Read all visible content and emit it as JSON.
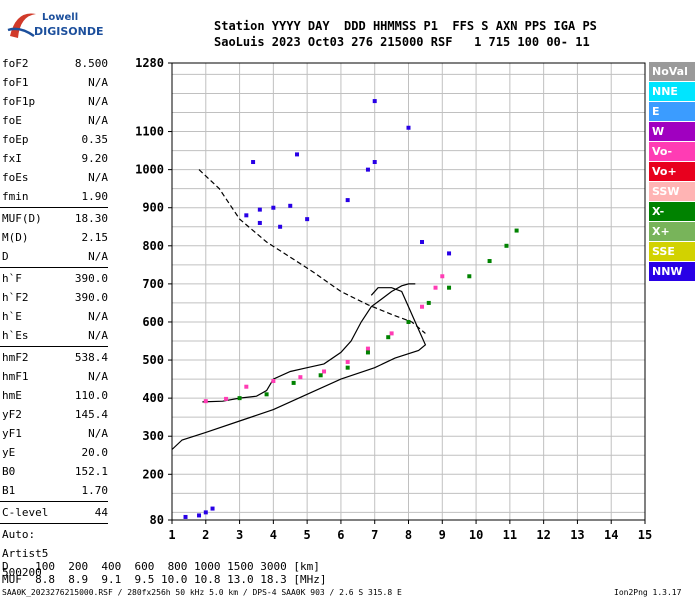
{
  "logo": {
    "line1": "Lowell",
    "line2": "DIGISONDE"
  },
  "header": {
    "labels": "Station YYYY DAY  DDD HHMMSS P1  FFS S AXN PPS IGA PS",
    "values": "SaoLuis 2023 Oct03 276 215000 RSF   1 715 100 00- 11"
  },
  "params": [
    {
      "k": "foF2",
      "v": "8.500"
    },
    {
      "k": "foF1",
      "v": "N/A"
    },
    {
      "k": "foF1p",
      "v": "N/A"
    },
    {
      "k": "foE",
      "v": "N/A"
    },
    {
      "k": "foEp",
      "v": "0.35"
    },
    {
      "k": "fxI",
      "v": "9.20"
    },
    {
      "k": "foEs",
      "v": "N/A"
    },
    {
      "k": "fmin",
      "v": "1.90"
    },
    {
      "k": "MUF(D)",
      "v": "18.30"
    },
    {
      "k": "M(D)",
      "v": "2.15"
    },
    {
      "k": "D",
      "v": "N/A"
    },
    {
      "k": "h`F",
      "v": "390.0"
    },
    {
      "k": "h`F2",
      "v": "390.0"
    },
    {
      "k": "h`E",
      "v": "N/A"
    },
    {
      "k": "h`Es",
      "v": "N/A"
    },
    {
      "k": "hmF2",
      "v": "538.4"
    },
    {
      "k": "hmF1",
      "v": "N/A"
    },
    {
      "k": "hmE",
      "v": "110.0"
    },
    {
      "k": "yF2",
      "v": "145.4"
    },
    {
      "k": "yF1",
      "v": "N/A"
    },
    {
      "k": "yE",
      "v": "20.0"
    },
    {
      "k": "B0",
      "v": "152.1"
    },
    {
      "k": "B1",
      "v": "1.70"
    },
    {
      "k": "C-level",
      "v": "44"
    }
  ],
  "auto": {
    "l1": "Auto:",
    "l2": "Artist5",
    "l3": "500200"
  },
  "legend": [
    {
      "name": "NoVal",
      "color": "#9a9a9a"
    },
    {
      "name": "NNE",
      "color": "#00e5ff"
    },
    {
      "name": "E",
      "color": "#3b9cff"
    },
    {
      "name": "W",
      "color": "#a000c0"
    },
    {
      "name": "Vo-",
      "color": "#ff3cb4"
    },
    {
      "name": "Vo+",
      "color": "#e8001e"
    },
    {
      "name": "SSW",
      "color": "#ffb4b4"
    },
    {
      "name": "X-",
      "color": "#008200"
    },
    {
      "name": "X+",
      "color": "#78b45a"
    },
    {
      "name": "SSE",
      "color": "#d2d200"
    },
    {
      "name": "NNW",
      "color": "#2800e6"
    }
  ],
  "footer": {
    "dist": "D    100  200  400  600  800 1000 1500 3000 [km]",
    "muf": "MUF  8.8  8.9  9.1  9.5 10.0 10.8 13.0 18.3 [MHz]",
    "file": "SAA0K_2023276215000.RSF / 280fx256h 50 kHz 5.0 km / DPS-4 SAA0K 903 / 2.6 S 315.8 E",
    "version": "Ion2Png 1.3.17"
  },
  "chart_data": {
    "type": "scatter",
    "title": "",
    "xlabel": "",
    "ylabel": "",
    "xlim": [
      1,
      15
    ],
    "ylim": [
      80,
      1280
    ],
    "x_ticks": [
      1,
      2,
      3,
      4,
      5,
      6,
      7,
      8,
      9,
      10,
      11,
      12,
      13,
      14,
      15
    ],
    "y_ticks": [
      80,
      200,
      300,
      400,
      500,
      600,
      700,
      800,
      900,
      1000,
      1100,
      1280
    ],
    "grid": true,
    "series": [
      {
        "name": "profile",
        "style": "solid",
        "points": [
          [
            1.0,
            265
          ],
          [
            1.3,
            290
          ],
          [
            2.0,
            310
          ],
          [
            3.0,
            340
          ],
          [
            4.0,
            370
          ],
          [
            5.0,
            410
          ],
          [
            6.0,
            450
          ],
          [
            7.0,
            480
          ],
          [
            7.6,
            505
          ],
          [
            8.3,
            525
          ],
          [
            8.5,
            540
          ],
          [
            8.3,
            580
          ],
          [
            8.0,
            640
          ],
          [
            7.8,
            680
          ],
          [
            7.5,
            690
          ],
          [
            7.1,
            690
          ],
          [
            6.9,
            670
          ]
        ]
      },
      {
        "name": "trace-model",
        "style": "solid",
        "points": [
          [
            1.9,
            390
          ],
          [
            2.5,
            392
          ],
          [
            3.0,
            400
          ],
          [
            3.5,
            405
          ],
          [
            3.8,
            420
          ],
          [
            4.0,
            450
          ],
          [
            4.5,
            470
          ],
          [
            5.0,
            480
          ],
          [
            5.5,
            490
          ],
          [
            6.0,
            520
          ],
          [
            6.3,
            550
          ],
          [
            6.6,
            600
          ],
          [
            6.9,
            640
          ],
          [
            7.2,
            660
          ],
          [
            7.5,
            680
          ],
          [
            7.8,
            695
          ],
          [
            8.0,
            700
          ],
          [
            8.2,
            700
          ]
        ]
      },
      {
        "name": "virtual-height-dashed",
        "style": "dashed",
        "points": [
          [
            1.8,
            1000
          ],
          [
            2.4,
            950
          ],
          [
            3.0,
            870
          ],
          [
            3.8,
            810
          ],
          [
            4.5,
            770
          ],
          [
            5.2,
            730
          ],
          [
            6.0,
            680
          ],
          [
            6.8,
            645
          ],
          [
            7.5,
            620
          ],
          [
            8.1,
            600
          ],
          [
            8.5,
            570
          ]
        ]
      },
      {
        "name": "echoes-o",
        "style": "dots",
        "color": "#ff3cb4",
        "points": [
          [
            2.0,
            392
          ],
          [
            2.6,
            398
          ],
          [
            3.2,
            430
          ],
          [
            4.0,
            445
          ],
          [
            4.8,
            455
          ],
          [
            5.5,
            470
          ],
          [
            6.2,
            495
          ],
          [
            6.8,
            530
          ],
          [
            7.5,
            570
          ],
          [
            8.0,
            600
          ],
          [
            8.4,
            640
          ],
          [
            8.8,
            690
          ],
          [
            9.0,
            720
          ]
        ]
      },
      {
        "name": "echoes-x",
        "style": "dots",
        "color": "#008200",
        "points": [
          [
            3.0,
            400
          ],
          [
            3.8,
            410
          ],
          [
            4.6,
            440
          ],
          [
            5.4,
            460
          ],
          [
            6.2,
            480
          ],
          [
            6.8,
            520
          ],
          [
            7.4,
            560
          ],
          [
            8.0,
            600
          ],
          [
            8.6,
            650
          ],
          [
            9.2,
            690
          ],
          [
            9.8,
            720
          ],
          [
            10.4,
            760
          ],
          [
            10.9,
            800
          ],
          [
            11.2,
            840
          ]
        ]
      },
      {
        "name": "echoes-far",
        "style": "dots",
        "color": "#2800e6",
        "points": [
          [
            3.2,
            880
          ],
          [
            3.6,
            895
          ],
          [
            4.0,
            900
          ],
          [
            4.5,
            905
          ],
          [
            5.0,
            870
          ],
          [
            3.6,
            860
          ],
          [
            4.2,
            850
          ],
          [
            6.2,
            920
          ],
          [
            6.8,
            1000
          ],
          [
            7.0,
            1020
          ],
          [
            8.0,
            1110
          ],
          [
            7.0,
            1180
          ],
          [
            4.7,
            1040
          ],
          [
            3.4,
            1020
          ],
          [
            9.2,
            780
          ],
          [
            8.4,
            810
          ],
          [
            2.0,
            100
          ],
          [
            2.2,
            110
          ],
          [
            1.4,
            88
          ],
          [
            1.8,
            92
          ]
        ]
      }
    ]
  }
}
